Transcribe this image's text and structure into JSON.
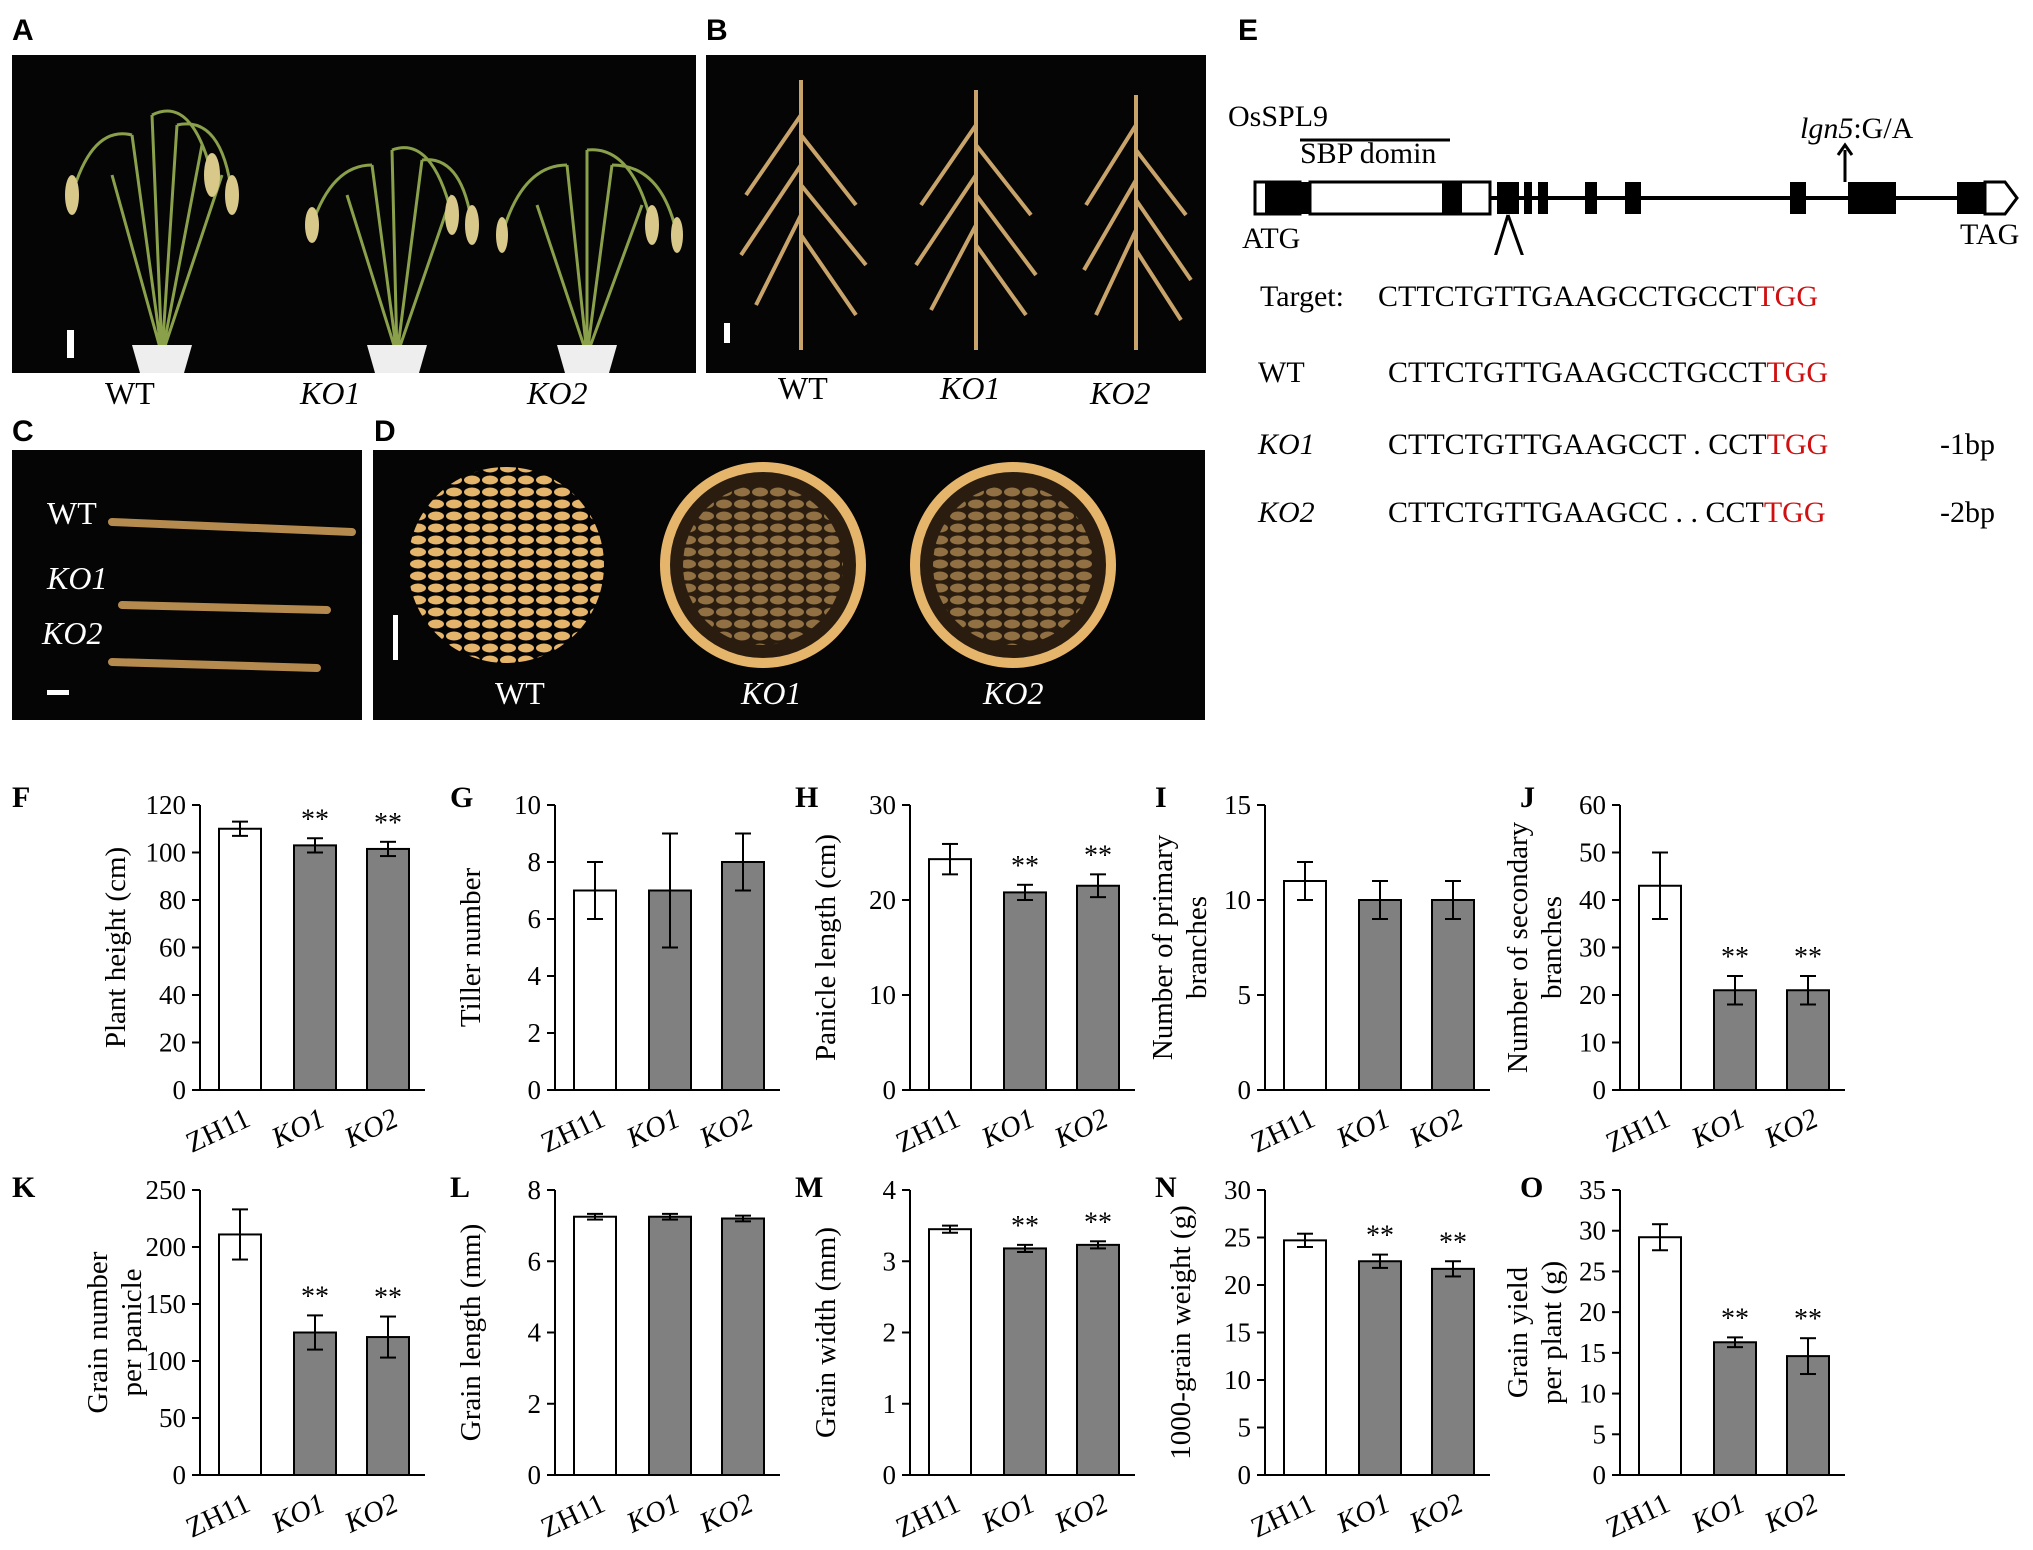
{
  "panel_letters": {
    "A": "A",
    "B": "B",
    "C": "C",
    "D": "D",
    "E": "E",
    "F": "F",
    "G": "G",
    "H": "H",
    "I": "I",
    "J": "J",
    "K": "K",
    "L": "L",
    "M": "M",
    "N": "N",
    "O": "O"
  },
  "photo_labels": {
    "a": [
      "WT",
      "KO1",
      "KO2"
    ],
    "b": [
      "WT",
      "KO1",
      "KO2"
    ],
    "c": [
      "WT",
      "KO1",
      "KO2"
    ],
    "d": [
      "WT",
      "KO1",
      "KO2"
    ]
  },
  "gene": {
    "name": "OsSPL9",
    "domain": "SBP domin",
    "mutation_italic": "lgn5",
    "mutation_rest": ":G/A",
    "start": "ATG",
    "stop": "TAG"
  },
  "sequences": {
    "target_label": "Target:",
    "target_seq": "CTTCTGTTGAAGCCTGCCT",
    "pam": "TGG",
    "rows": [
      {
        "name": "WT",
        "seq": "CTTCTGTTGAAGCCTGCCT",
        "pam": "TGG",
        "del": ""
      },
      {
        "name": "KO1",
        "seq": "CTTCTGTTGAAGCCT . CCT",
        "pam": "TGG",
        "del": "-1bp"
      },
      {
        "name": "KO2",
        "seq": "CTTCTGTTGAAGCC . . CCT",
        "pam": "TGG",
        "del": "-2bp"
      }
    ]
  },
  "colors": {
    "wt_bar": "#ffffff",
    "ko_bar": "#808080",
    "pam": "#d01010"
  },
  "chart_data": [
    {
      "panel": "F",
      "type": "bar",
      "categories": [
        "ZH11",
        "KO1",
        "KO2"
      ],
      "values": [
        110,
        103,
        101.5
      ],
      "errors": [
        3,
        3,
        3
      ],
      "sig": [
        "",
        "**",
        "**"
      ],
      "ylabel": "Plant height (cm)",
      "ylim": [
        0,
        120
      ],
      "ticks": [
        0,
        20,
        40,
        60,
        80,
        100,
        120
      ]
    },
    {
      "panel": "G",
      "type": "bar",
      "categories": [
        "ZH11",
        "KO1",
        "KO2"
      ],
      "values": [
        7,
        7,
        8
      ],
      "errors": [
        1,
        2,
        1
      ],
      "sig": [
        "",
        "",
        ""
      ],
      "ylabel": "Tiller number",
      "ylim": [
        0,
        10
      ],
      "ticks": [
        0,
        2,
        4,
        6,
        8,
        10
      ]
    },
    {
      "panel": "H",
      "type": "bar",
      "categories": [
        "ZH11",
        "KO1",
        "KO2"
      ],
      "values": [
        24.3,
        20.8,
        21.5
      ],
      "errors": [
        1.6,
        0.8,
        1.2
      ],
      "sig": [
        "",
        "**",
        "**"
      ],
      "ylabel": "Panicle length (cm)",
      "ylim": [
        0,
        30
      ],
      "ticks": [
        0,
        10,
        20,
        30
      ]
    },
    {
      "panel": "I",
      "type": "bar",
      "categories": [
        "ZH11",
        "KO1",
        "KO2"
      ],
      "values": [
        11,
        10,
        10
      ],
      "errors": [
        1,
        1,
        1
      ],
      "sig": [
        "",
        "",
        ""
      ],
      "ylabel": [
        "Number of primary",
        "branches"
      ],
      "ylim": [
        0,
        15
      ],
      "ticks": [
        0,
        5,
        10,
        15
      ]
    },
    {
      "panel": "J",
      "type": "bar",
      "categories": [
        "ZH11",
        "KO1",
        "KO2"
      ],
      "values": [
        43,
        21,
        21
      ],
      "errors": [
        7,
        3,
        3
      ],
      "sig": [
        "",
        "**",
        "**"
      ],
      "ylabel": [
        "Number of secondary",
        "branches"
      ],
      "ylim": [
        0,
        60
      ],
      "ticks": [
        0,
        10,
        20,
        30,
        40,
        50,
        60
      ]
    },
    {
      "panel": "K",
      "type": "bar",
      "categories": [
        "ZH11",
        "KO1",
        "KO2"
      ],
      "values": [
        211,
        125,
        121
      ],
      "errors": [
        22,
        15,
        18
      ],
      "sig": [
        "",
        "**",
        "**"
      ],
      "ylabel": [
        "Grain number",
        "per panicle"
      ],
      "ylim": [
        0,
        250
      ],
      "ticks": [
        0,
        50,
        100,
        150,
        200,
        250
      ]
    },
    {
      "panel": "L",
      "type": "bar",
      "categories": [
        "ZH11",
        "KO1",
        "KO2"
      ],
      "values": [
        7.25,
        7.25,
        7.2
      ],
      "errors": [
        0.08,
        0.08,
        0.08
      ],
      "sig": [
        "",
        "",
        ""
      ],
      "ylabel": "Grain length (mm)",
      "ylim": [
        0,
        8
      ],
      "ticks": [
        0,
        2,
        4,
        6,
        8
      ]
    },
    {
      "panel": "M",
      "type": "bar",
      "categories": [
        "ZH11",
        "KO1",
        "KO2"
      ],
      "values": [
        3.45,
        3.18,
        3.23
      ],
      "errors": [
        0.05,
        0.05,
        0.05
      ],
      "sig": [
        "",
        "**",
        "**"
      ],
      "ylabel": "Grain width (mm)",
      "ylim": [
        0,
        4
      ],
      "ticks": [
        0,
        1,
        2,
        3,
        4
      ]
    },
    {
      "panel": "N",
      "type": "bar",
      "categories": [
        "ZH11",
        "KO1",
        "KO2"
      ],
      "values": [
        24.7,
        22.5,
        21.7
      ],
      "errors": [
        0.7,
        0.7,
        0.8
      ],
      "sig": [
        "",
        "**",
        "**"
      ],
      "ylabel": "1000-grain weight (g)",
      "ylim": [
        0,
        30
      ],
      "ticks": [
        0,
        5,
        10,
        15,
        20,
        25,
        30
      ]
    },
    {
      "panel": "O",
      "type": "bar",
      "categories": [
        "ZH11",
        "KO1",
        "KO2"
      ],
      "values": [
        29.2,
        16.3,
        14.6
      ],
      "errors": [
        1.6,
        0.6,
        2.2
      ],
      "sig": [
        "",
        "**",
        "**"
      ],
      "ylabel": [
        "Grain yield",
        "per plant (g)"
      ],
      "ylim": [
        0,
        35
      ],
      "ticks": [
        0,
        5,
        10,
        15,
        20,
        25,
        30,
        35
      ]
    }
  ]
}
